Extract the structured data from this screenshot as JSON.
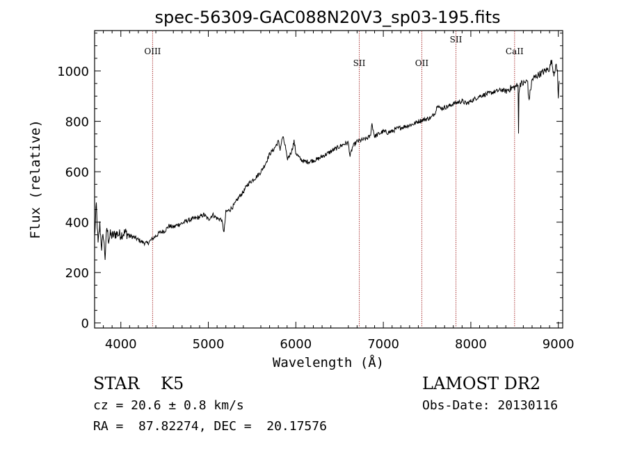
{
  "chart_data": {
    "type": "line",
    "title": "spec-56309-GAC088N20V3_sp03-195.fits",
    "xlabel": "Wavelength (Å)",
    "ylabel": "Flux (relative)",
    "xlim": [
      3700,
      9050
    ],
    "ylim": [
      -20,
      1160
    ],
    "xticks": [
      4000,
      5000,
      6000,
      7000,
      8000,
      9000
    ],
    "yticks": [
      0,
      200,
      400,
      600,
      800,
      1000
    ],
    "grid": false,
    "series": [
      {
        "x": [
          3700,
          3720,
          3740,
          3760,
          3780,
          3800,
          3820,
          3840,
          3860,
          3880,
          3900,
          3950,
          4000,
          4050,
          4100,
          4150,
          4200,
          4250,
          4300,
          4350,
          4400,
          4450,
          4500,
          4550,
          4600,
          4650,
          4700,
          4750,
          4800,
          4850,
          4900,
          4950,
          5000,
          5050,
          5100,
          5150,
          5180,
          5200,
          5250,
          5300,
          5350,
          5400,
          5450,
          5500,
          5550,
          5600,
          5650,
          5700,
          5750,
          5800,
          5820,
          5850,
          5880,
          5900,
          5920,
          5950,
          5980,
          6000,
          6050,
          6100,
          6150,
          6200,
          6250,
          6300,
          6350,
          6400,
          6450,
          6500,
          6550,
          6600,
          6620,
          6650,
          6700,
          6750,
          6800,
          6850,
          6870,
          6900,
          6950,
          7000,
          7050,
          7100,
          7150,
          7200,
          7250,
          7300,
          7350,
          7400,
          7450,
          7500,
          7550,
          7600,
          7620,
          7650,
          7700,
          7750,
          7800,
          7850,
          7900,
          7950,
          8000,
          8050,
          8100,
          8150,
          8200,
          8250,
          8300,
          8350,
          8400,
          8450,
          8500,
          8520,
          8540,
          8545,
          8550,
          8560,
          8600,
          8650,
          8662,
          8700,
          8750,
          8800,
          8850,
          8900,
          8920,
          8950,
          8970,
          8990,
          9000,
          9010
        ],
        "y": [
          340,
          470,
          310,
          390,
          300,
          350,
          260,
          380,
          330,
          350,
          345,
          355,
          350,
          360,
          345,
          340,
          330,
          320,
          315,
          330,
          345,
          360,
          365,
          385,
          380,
          390,
          395,
          405,
          410,
          415,
          420,
          430,
          410,
          430,
          415,
          410,
          360,
          440,
          450,
          470,
          500,
          520,
          550,
          565,
          580,
          600,
          630,
          670,
          690,
          720,
          690,
          740,
          700,
          650,
          660,
          680,
          720,
          675,
          650,
          640,
          640,
          645,
          650,
          660,
          670,
          680,
          690,
          700,
          710,
          715,
          660,
          700,
          720,
          725,
          730,
          740,
          790,
          740,
          750,
          760,
          755,
          760,
          770,
          775,
          780,
          785,
          790,
          800,
          805,
          810,
          815,
          840,
          870,
          850,
          855,
          860,
          870,
          875,
          880,
          870,
          880,
          890,
          900,
          905,
          910,
          915,
          920,
          925,
          920,
          930,
          935,
          940,
          940,
          760,
          900,
          950,
          950,
          960,
          880,
          965,
          980,
          990,
          1000,
          1010,
          1040,
          990,
          1020,
          1000,
          890,
          960
        ]
      }
    ],
    "lines": [
      {
        "label": "OIII",
        "x": 4363
      },
      {
        "label": "SII",
        "x": 6725
      },
      {
        "label": "OII",
        "x": 7440
      },
      {
        "label": "SII",
        "x": 7830
      },
      {
        "label": "CaII",
        "x": 8500
      }
    ]
  },
  "info": {
    "object": "STAR    K5",
    "survey": "LAMOST DR2",
    "cz": "cz = 20.6 ± 0.8 km/s",
    "obs_date": "Obs-Date: 20130116",
    "coords": "RA =  87.82274, DEC =  20.17576"
  }
}
